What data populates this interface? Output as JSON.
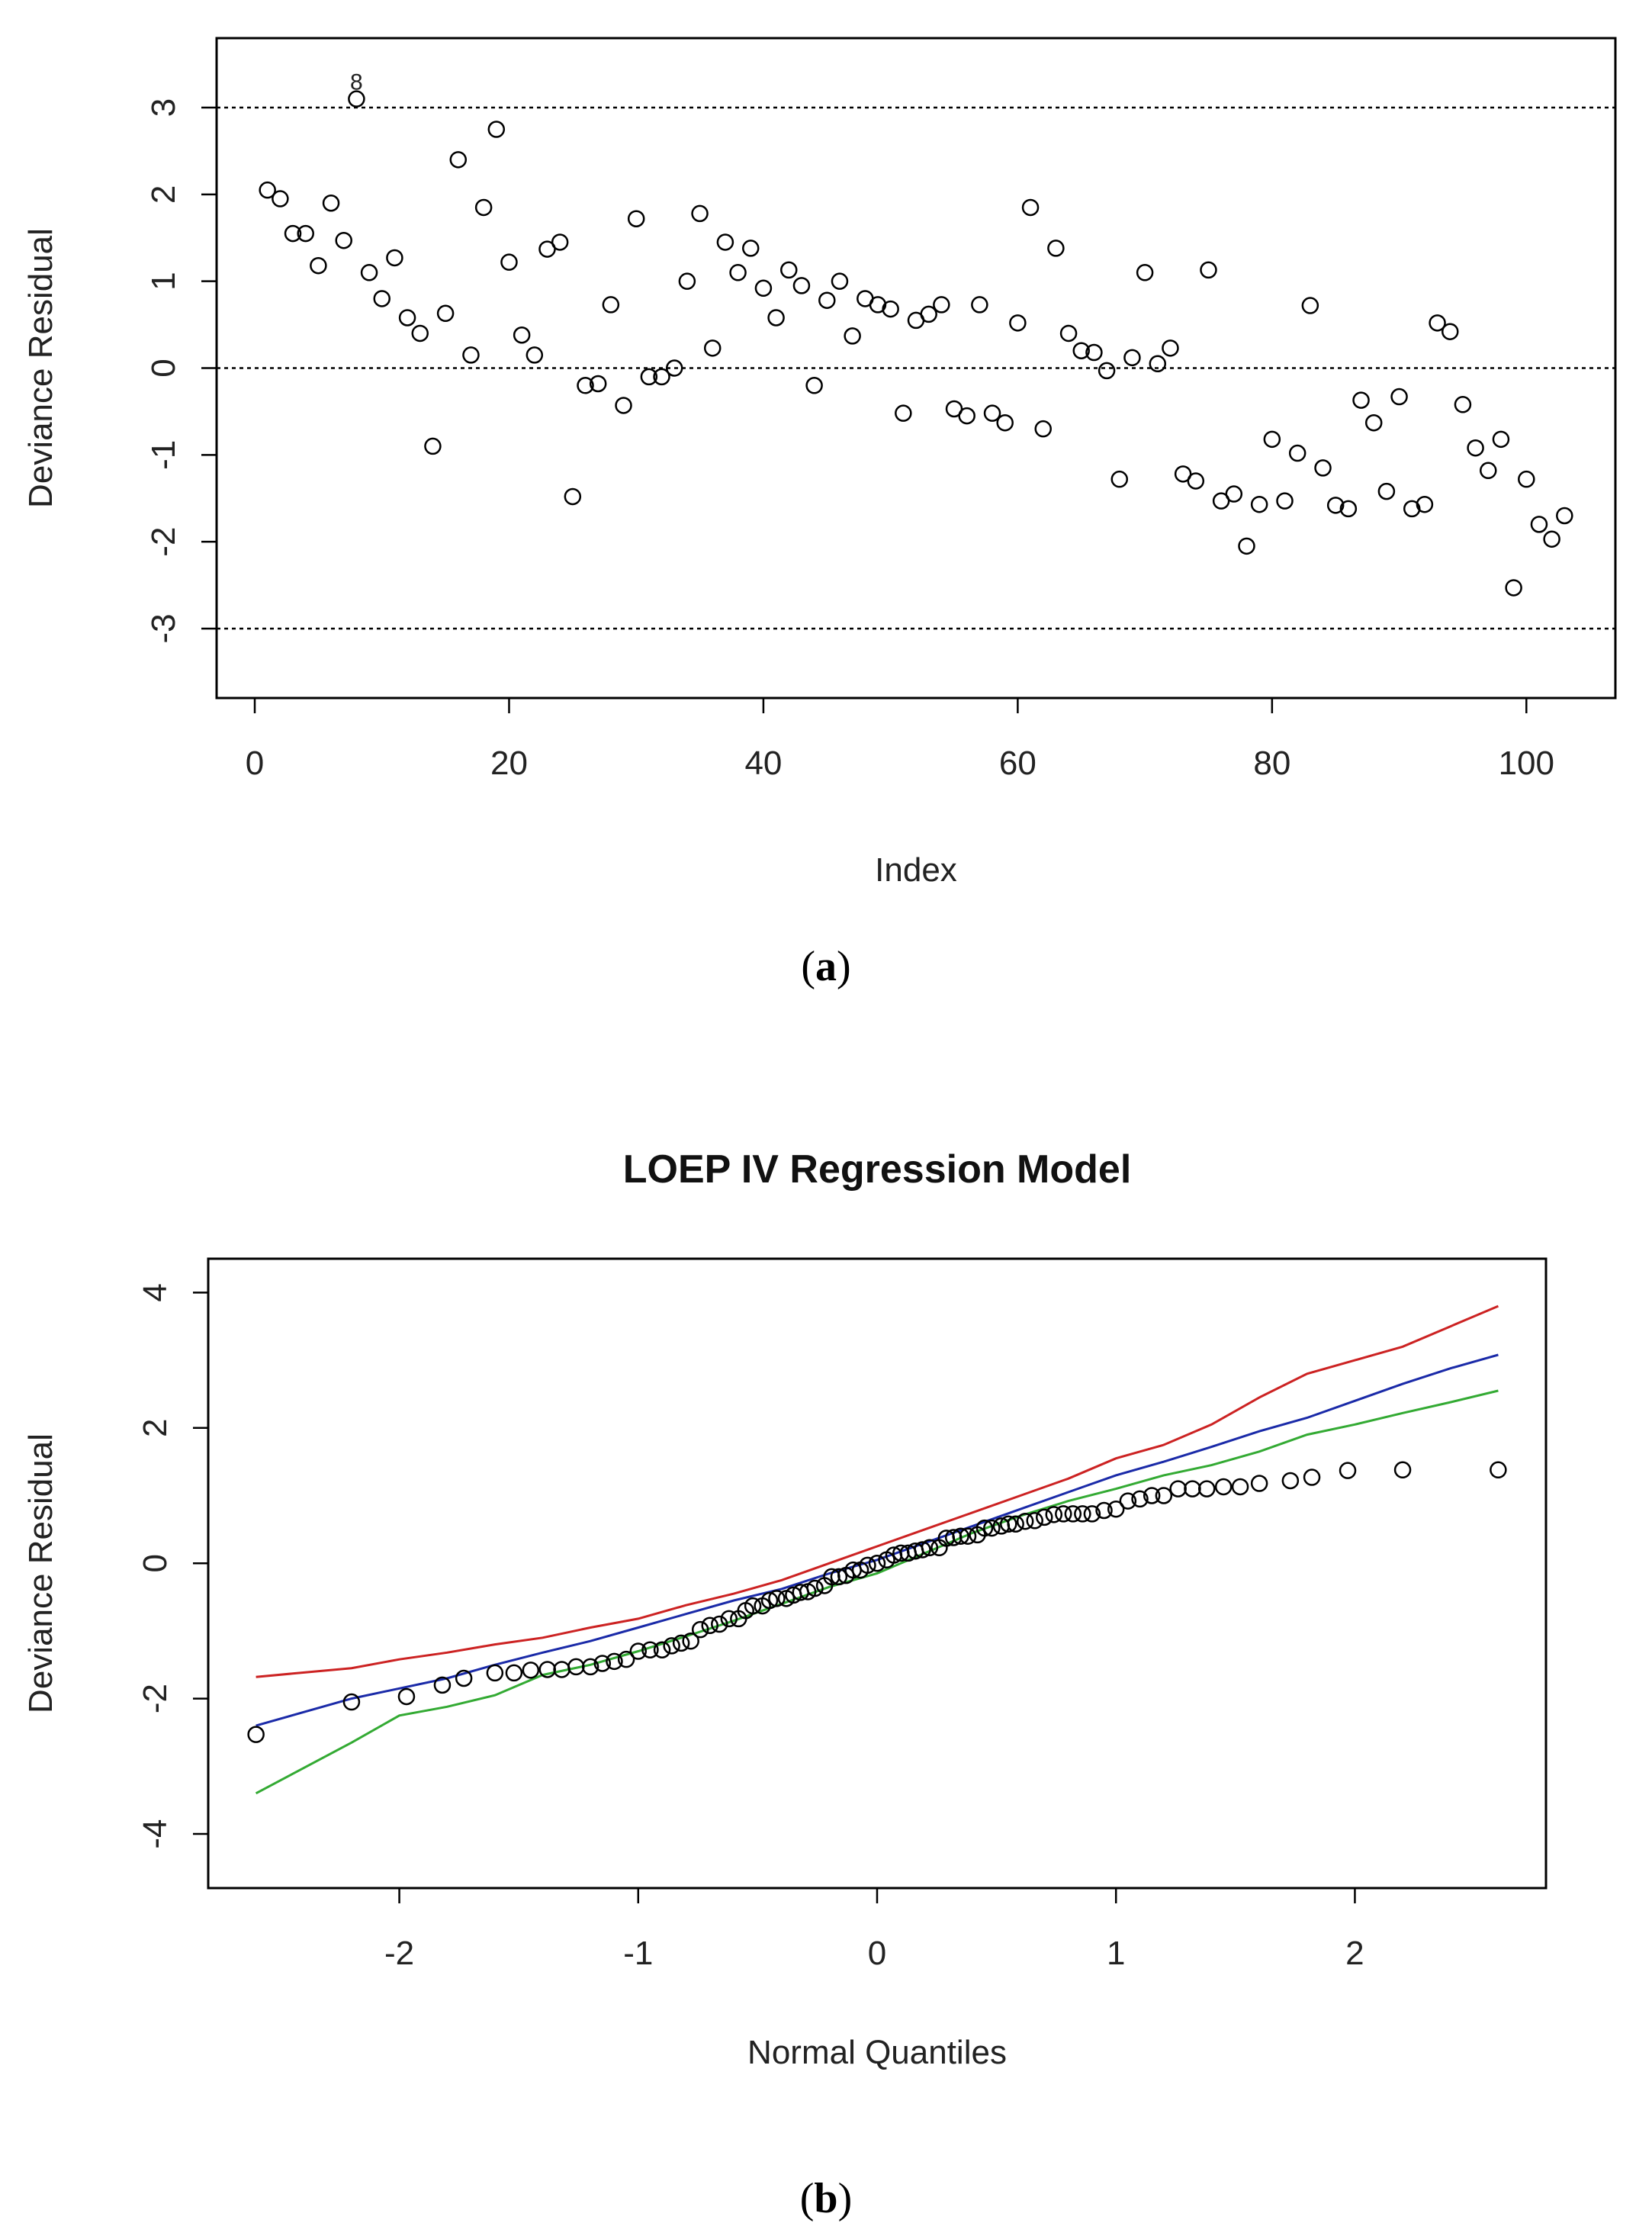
{
  "chart_data": [
    {
      "type": "scatter",
      "panel_label": "(a)",
      "panel_letter": "a",
      "title": "",
      "xlabel": "Index",
      "ylabel": "Deviance Residual",
      "xlim": [
        -3,
        107
      ],
      "ylim": [
        -3.8,
        3.8
      ],
      "xticks": [
        0,
        20,
        40,
        60,
        80,
        100
      ],
      "xtick_labels": [
        "0",
        "20",
        "40",
        "60",
        "80",
        "100"
      ],
      "yticks": [
        -3,
        -2,
        -1,
        0,
        1,
        2,
        3
      ],
      "ytick_labels": [
        "-3",
        "-2",
        "-1",
        "0",
        "1",
        "2",
        "3"
      ],
      "reference_lines": [
        3,
        0,
        -3
      ],
      "point_annotation": {
        "index": 8,
        "label": "8"
      },
      "x": [
        1,
        2,
        3,
        4,
        5,
        6,
        7,
        8,
        9,
        10,
        11,
        12,
        13,
        14,
        15,
        16,
        17,
        18,
        19,
        20,
        21,
        22,
        23,
        24,
        25,
        26,
        27,
        28,
        29,
        30,
        31,
        32,
        33,
        34,
        35,
        36,
        37,
        38,
        39,
        40,
        41,
        42,
        43,
        44,
        45,
        46,
        47,
        48,
        49,
        50,
        51,
        52,
        53,
        54,
        55,
        56,
        57,
        58,
        59,
        60,
        61,
        62,
        63,
        64,
        65,
        66,
        67,
        68,
        69,
        70,
        71,
        72,
        73,
        74,
        75,
        76,
        77,
        78,
        79,
        80,
        81,
        82,
        83,
        84,
        85,
        86,
        87,
        88,
        89,
        90,
        91,
        92,
        93,
        94,
        95,
        96,
        97,
        98,
        99,
        100,
        101,
        102,
        103
      ],
      "y": [
        2.05,
        1.95,
        1.55,
        1.55,
        1.18,
        1.9,
        1.47,
        3.1,
        1.1,
        0.8,
        1.27,
        0.58,
        0.4,
        -0.9,
        0.63,
        2.4,
        0.15,
        1.85,
        2.75,
        1.22,
        0.38,
        0.15,
        1.37,
        1.45,
        -1.48,
        -0.2,
        -0.18,
        0.73,
        -0.43,
        1.72,
        -0.1,
        -0.1,
        0.0,
        1.0,
        1.78,
        0.23,
        1.45,
        1.1,
        1.38,
        0.92,
        0.58,
        1.13,
        0.95,
        -0.2,
        0.78,
        1.0,
        0.37,
        0.8,
        0.73,
        0.68,
        -0.52,
        0.55,
        0.62,
        0.73,
        -0.47,
        -0.55,
        0.73,
        -0.52,
        -0.63,
        0.52,
        1.85,
        -0.7,
        1.38,
        0.4,
        0.2,
        0.18,
        -0.03,
        -1.28,
        0.12,
        1.1,
        0.05,
        0.23,
        -1.22,
        -1.3,
        1.13,
        -1.53,
        -1.45,
        -2.05,
        -1.57,
        -0.82,
        -1.53,
        -0.98,
        0.72,
        -1.15,
        -1.58,
        -1.62,
        -0.37,
        -0.63,
        -1.42,
        -0.33,
        -1.62,
        -1.57,
        0.52,
        0.42,
        -0.42,
        -0.92,
        -1.18,
        -0.82,
        -2.53,
        -1.28,
        -1.8,
        -1.97,
        -1.7
      ]
    },
    {
      "type": "line",
      "subtype": "qq-plot with envelope",
      "panel_label": "(b)",
      "panel_letter": "b",
      "title": "LOEP IV Regression Model",
      "xlabel": "Normal Quantiles",
      "ylabel": "Deviance Residual",
      "xlim": [
        -2.8,
        2.8
      ],
      "ylim": [
        -4.8,
        4.5
      ],
      "xticks": [
        -2,
        -1,
        0,
        1,
        2
      ],
      "xtick_labels": [
        "-2",
        "-1",
        "0",
        "1",
        "2"
      ],
      "yticks": [
        -4,
        -2,
        0,
        2,
        4
      ],
      "ytick_labels": [
        "-4",
        "-2",
        "0",
        "2",
        "4"
      ],
      "series": [
        {
          "name": "upper envelope",
          "color": "#cc2222",
          "x": [
            -2.6,
            -2.2,
            -2.0,
            -1.8,
            -1.6,
            -1.4,
            -1.2,
            -1.0,
            -0.8,
            -0.6,
            -0.4,
            -0.2,
            0.0,
            0.2,
            0.4,
            0.6,
            0.8,
            1.0,
            1.2,
            1.4,
            1.6,
            1.8,
            2.0,
            2.2,
            2.4,
            2.6
          ],
          "y": [
            -1.68,
            -1.55,
            -1.42,
            -1.32,
            -1.2,
            -1.1,
            -0.95,
            -0.82,
            -0.62,
            -0.45,
            -0.25,
            0.0,
            0.25,
            0.5,
            0.75,
            1.0,
            1.25,
            1.55,
            1.75,
            2.05,
            2.45,
            2.8,
            3.0,
            3.2,
            3.5,
            3.8
          ]
        },
        {
          "name": "median",
          "color": "#1a2aa8",
          "x": [
            -2.6,
            -2.2,
            -2.0,
            -1.8,
            -1.6,
            -1.4,
            -1.2,
            -1.0,
            -0.8,
            -0.6,
            -0.4,
            -0.2,
            0.0,
            0.2,
            0.4,
            0.6,
            0.8,
            1.0,
            1.2,
            1.4,
            1.6,
            1.8,
            2.0,
            2.2,
            2.4,
            2.6
          ],
          "y": [
            -2.4,
            -2.0,
            -1.85,
            -1.7,
            -1.5,
            -1.32,
            -1.15,
            -0.95,
            -0.75,
            -0.55,
            -0.38,
            -0.15,
            0.05,
            0.3,
            0.55,
            0.8,
            1.05,
            1.3,
            1.5,
            1.72,
            1.95,
            2.15,
            2.4,
            2.65,
            2.88,
            3.08
          ]
        },
        {
          "name": "lower envelope",
          "color": "#33aa33",
          "x": [
            -2.6,
            -2.2,
            -2.0,
            -1.8,
            -1.6,
            -1.4,
            -1.2,
            -1.0,
            -0.8,
            -0.6,
            -0.4,
            -0.2,
            0.0,
            0.2,
            0.4,
            0.6,
            0.8,
            1.0,
            1.2,
            1.4,
            1.6,
            1.8,
            2.0,
            2.2,
            2.4,
            2.6
          ],
          "y": [
            -3.4,
            -2.65,
            -2.25,
            -2.12,
            -1.95,
            -1.65,
            -1.5,
            -1.3,
            -1.08,
            -0.85,
            -0.6,
            -0.35,
            -0.15,
            0.15,
            0.45,
            0.7,
            0.92,
            1.1,
            1.3,
            1.45,
            1.65,
            1.9,
            2.05,
            2.22,
            2.38,
            2.55
          ]
        },
        {
          "name": "observed",
          "type": "scatter",
          "color": "#000000",
          "x": [
            -2.6,
            -2.2,
            -1.97,
            -1.82,
            -1.73,
            -1.6,
            -1.52,
            -1.45,
            -1.38,
            -1.32,
            -1.26,
            -1.2,
            -1.15,
            -1.1,
            -1.05,
            -1.0,
            -0.95,
            -0.9,
            -0.86,
            -0.82,
            -0.78,
            -0.74,
            -0.7,
            -0.66,
            -0.62,
            -0.58,
            -0.55,
            -0.52,
            -0.48,
            -0.45,
            -0.42,
            -0.38,
            -0.35,
            -0.32,
            -0.29,
            -0.26,
            -0.22,
            -0.19,
            -0.16,
            -0.13,
            -0.1,
            -0.07,
            -0.04,
            0.0,
            0.04,
            0.07,
            0.1,
            0.13,
            0.16,
            0.19,
            0.22,
            0.26,
            0.29,
            0.32,
            0.35,
            0.38,
            0.42,
            0.45,
            0.48,
            0.52,
            0.55,
            0.58,
            0.62,
            0.66,
            0.7,
            0.74,
            0.78,
            0.82,
            0.86,
            0.9,
            0.95,
            1.0,
            1.05,
            1.1,
            1.15,
            1.2,
            1.26,
            1.32,
            1.38,
            1.45,
            1.52,
            1.6,
            1.73,
            1.82,
            1.97,
            2.2,
            2.6
          ],
          "y": [
            -2.53,
            -2.05,
            -1.97,
            -1.8,
            -1.7,
            -1.62,
            -1.62,
            -1.58,
            -1.57,
            -1.57,
            -1.53,
            -1.53,
            -1.48,
            -1.45,
            -1.42,
            -1.3,
            -1.28,
            -1.28,
            -1.22,
            -1.18,
            -1.15,
            -0.98,
            -0.92,
            -0.9,
            -0.82,
            -0.82,
            -0.7,
            -0.63,
            -0.63,
            -0.55,
            -0.52,
            -0.52,
            -0.47,
            -0.43,
            -0.42,
            -0.37,
            -0.33,
            -0.2,
            -0.2,
            -0.18,
            -0.1,
            -0.1,
            -0.03,
            0.0,
            0.05,
            0.12,
            0.15,
            0.15,
            0.18,
            0.2,
            0.23,
            0.23,
            0.37,
            0.38,
            0.4,
            0.4,
            0.42,
            0.52,
            0.52,
            0.55,
            0.58,
            0.58,
            0.62,
            0.63,
            0.68,
            0.72,
            0.73,
            0.73,
            0.73,
            0.73,
            0.78,
            0.8,
            0.92,
            0.95,
            1.0,
            1.0,
            1.1,
            1.1,
            1.1,
            1.13,
            1.13,
            1.18,
            1.22,
            1.27,
            1.37,
            1.38,
            1.38
          ]
        }
      ]
    }
  ]
}
